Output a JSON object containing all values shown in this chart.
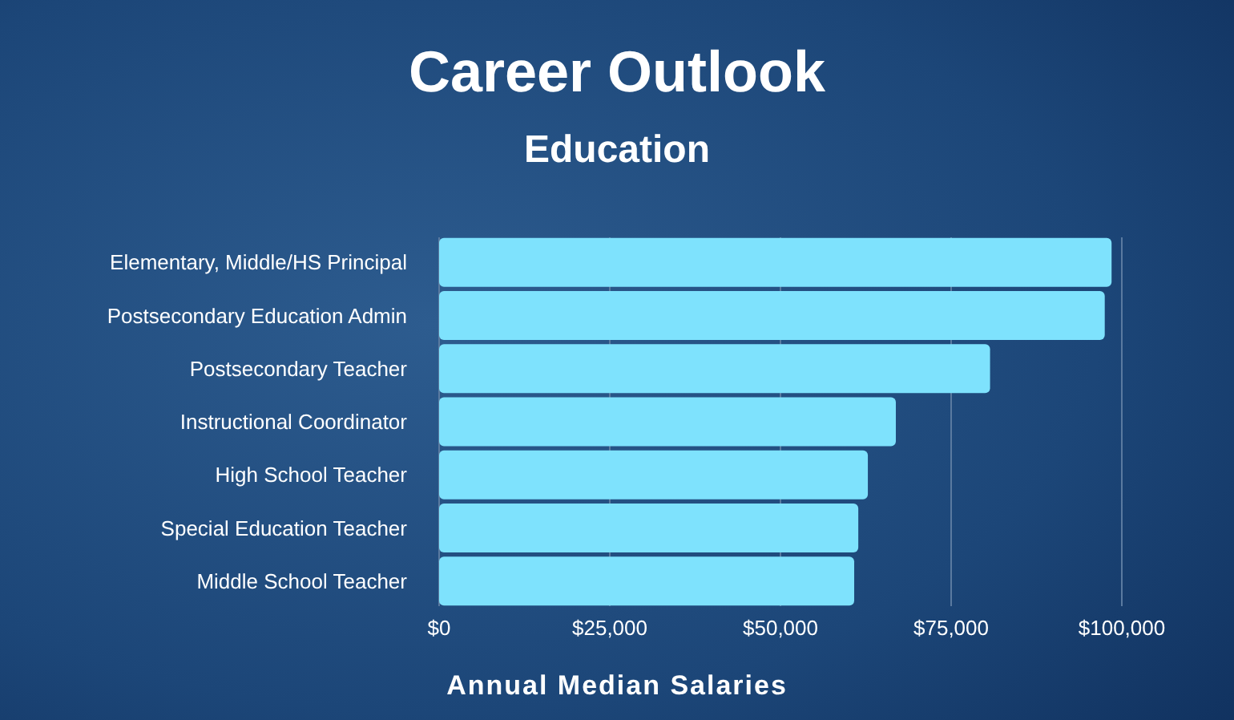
{
  "chart_data": {
    "type": "bar",
    "orientation": "horizontal",
    "title": "Career Outlook",
    "subtitle": "Education",
    "xlabel": "Annual Median Salaries",
    "categories": [
      "Elementary, Middle/HS Principal",
      "Postsecondary Education Admin",
      "Postsecondary Teacher",
      "Instructional Coordinator",
      "High School Teacher",
      "Special Education Teacher",
      "Middle School Teacher"
    ],
    "values": [
      98500,
      97500,
      80700,
      66900,
      62800,
      61400,
      60800
    ],
    "color": "#7ee2fd",
    "xlim": [
      0,
      100000
    ],
    "xticks": [
      {
        "value": 0,
        "label": "$0"
      },
      {
        "value": 25000,
        "label": "$25,000"
      },
      {
        "value": 50000,
        "label": "$50,000"
      },
      {
        "value": 75000,
        "label": "$75,000"
      },
      {
        "value": 100000,
        "label": "$100,000"
      }
    ],
    "grid": "x"
  }
}
